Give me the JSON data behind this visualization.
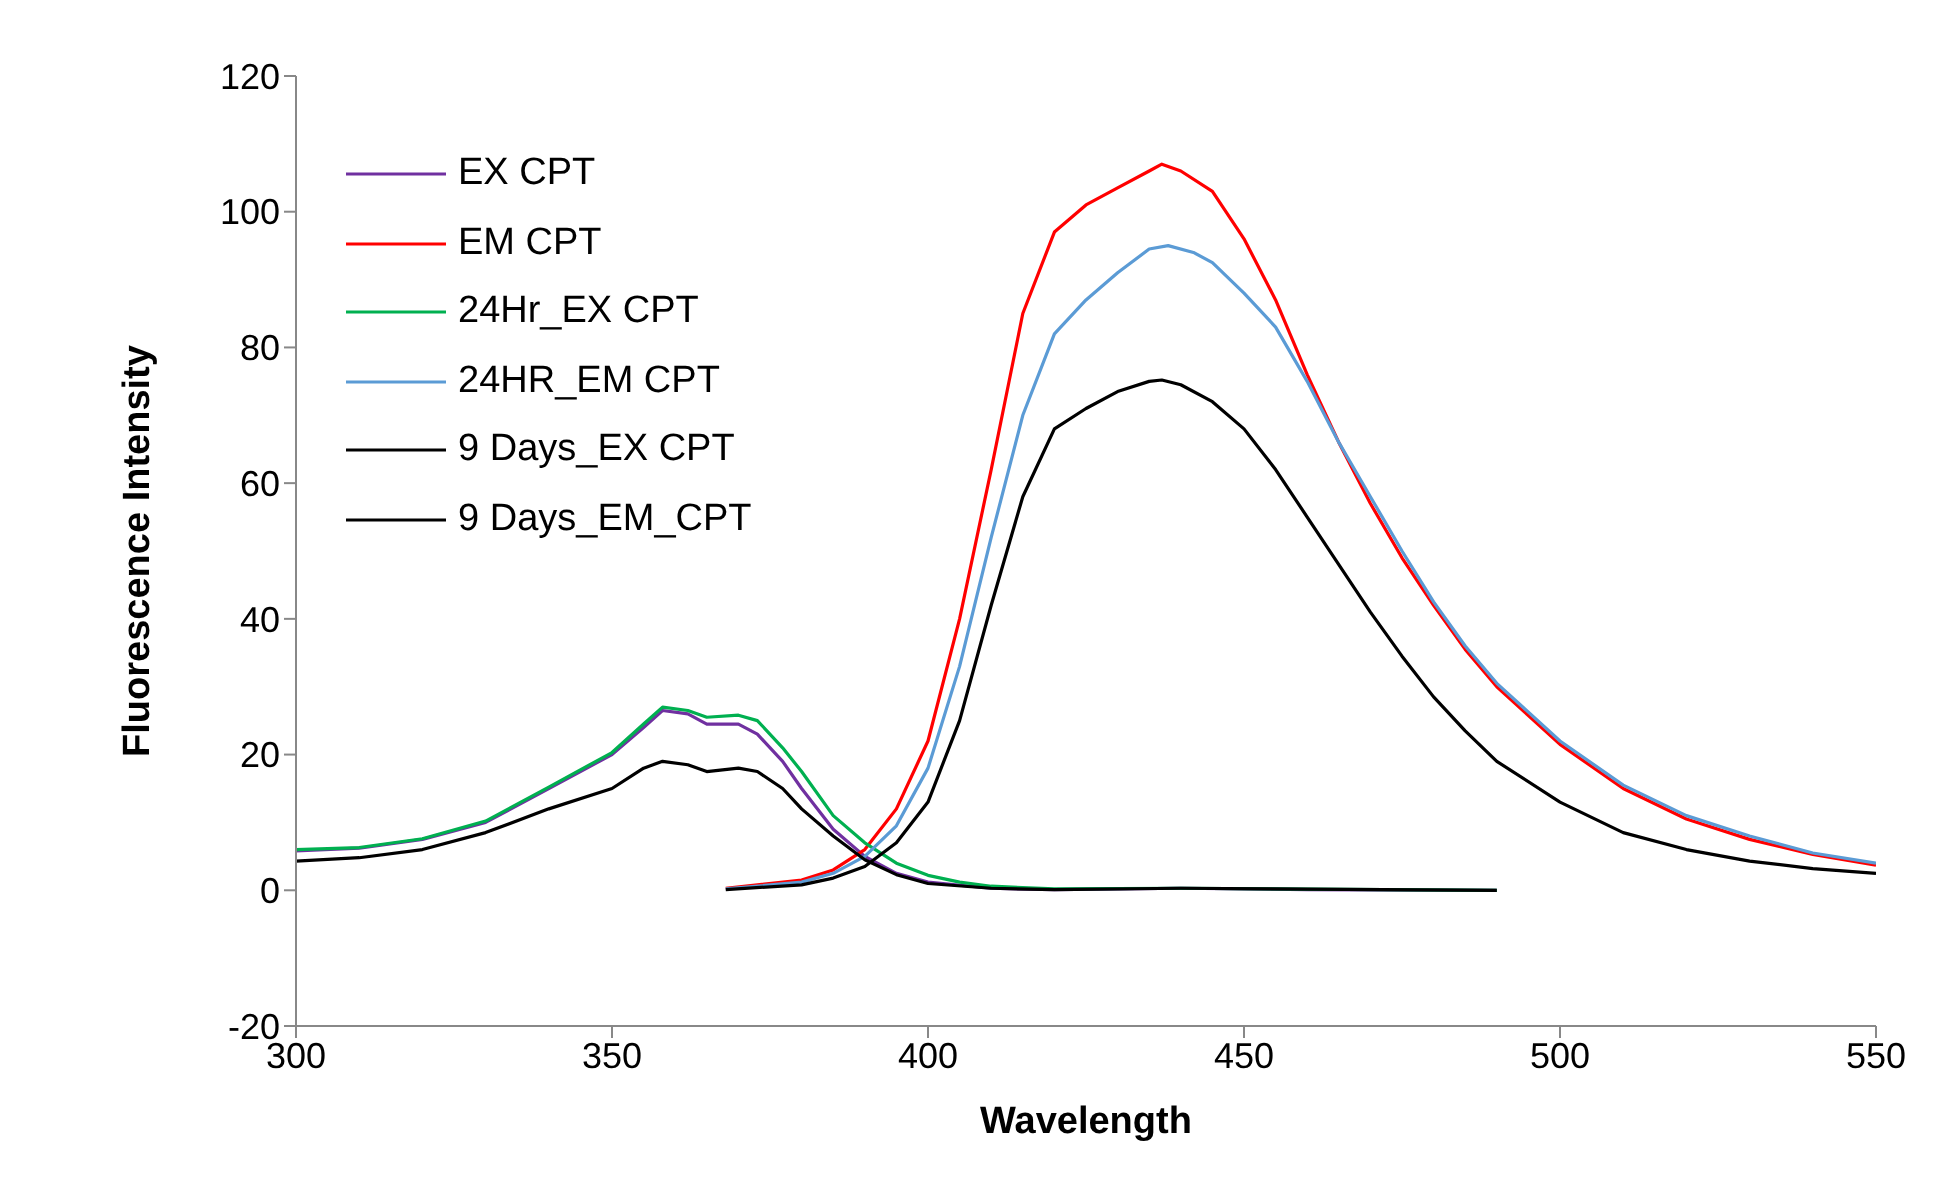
{
  "chart_data": {
    "type": "line",
    "xlabel": "Wavelength",
    "ylabel": "Fluorescence Intensity",
    "xlim": [
      300,
      550
    ],
    "xticks": [
      300,
      350,
      400,
      450,
      500,
      550
    ],
    "ylim": [
      -20,
      120
    ],
    "yticks": [
      -20,
      0,
      20,
      40,
      60,
      80,
      100,
      120
    ],
    "grid": false,
    "legend": "top left",
    "marker": "none",
    "line_style": "solid",
    "series": [
      {
        "name": "EX CPT",
        "color": "#7030a0",
        "x": [
          300,
          310,
          320,
          330,
          340,
          350,
          355,
          358,
          362,
          365,
          370,
          373,
          377,
          380,
          385,
          390,
          395,
          400,
          410,
          420,
          440,
          460,
          490
        ],
        "values": [
          5.8,
          6.2,
          7.5,
          10,
          15,
          20,
          24,
          26.5,
          26,
          24.5,
          24.5,
          23,
          19,
          15,
          9,
          5,
          2.5,
          1.2,
          0.3,
          0.1,
          0.3,
          0.1,
          0
        ]
      },
      {
        "name": "EM CPT",
        "color": "#ff0000",
        "x": [
          368,
          380,
          385,
          390,
          395,
          400,
          405,
          410,
          415,
          420,
          425,
          430,
          435,
          437,
          440,
          445,
          450,
          455,
          460,
          465,
          470,
          475,
          480,
          485,
          490,
          500,
          510,
          520,
          530,
          540,
          550
        ],
        "values": [
          0.3,
          1.5,
          3,
          6,
          12,
          22,
          40,
          62,
          85,
          97,
          101,
          103.5,
          106,
          107,
          106,
          103,
          96,
          87,
          76,
          66,
          57,
          49,
          42,
          35.5,
          30,
          21.5,
          15,
          10.5,
          7.5,
          5.3,
          3.7
        ]
      },
      {
        "name": "24Hr_EX CPT",
        "color": "#00b050",
        "x": [
          300,
          310,
          320,
          330,
          340,
          350,
          355,
          358,
          362,
          365,
          370,
          373,
          377,
          380,
          385,
          390,
          395,
          400,
          405,
          410,
          420,
          440,
          490
        ],
        "values": [
          6,
          6.3,
          7.6,
          10.2,
          15.2,
          20.3,
          24.5,
          27,
          26.5,
          25.5,
          25.8,
          25,
          21,
          17.5,
          11,
          7,
          4,
          2.2,
          1.2,
          0.6,
          0.2,
          0.3,
          0
        ]
      },
      {
        "name": "24HR_EM CPT",
        "color": "#5b9bd5",
        "x": [
          368,
          380,
          385,
          390,
          395,
          400,
          405,
          410,
          415,
          420,
          425,
          430,
          435,
          438,
          442,
          445,
          450,
          455,
          460,
          465,
          470,
          475,
          480,
          485,
          490,
          500,
          510,
          520,
          530,
          540,
          550
        ],
        "values": [
          0.2,
          1.2,
          2.5,
          5,
          9.5,
          18,
          33,
          52,
          70,
          82,
          87,
          91,
          94.5,
          95,
          94,
          92.5,
          88,
          83,
          75,
          66,
          58,
          50,
          42.5,
          36,
          30.5,
          22,
          15.5,
          11,
          8,
          5.5,
          4
        ]
      },
      {
        "name": "9 Days_EX CPT",
        "color": "#000000",
        "x": [
          300,
          310,
          320,
          330,
          340,
          350,
          355,
          358,
          362,
          365,
          370,
          373,
          377,
          380,
          385,
          390,
          395,
          400,
          410,
          420,
          440,
          490
        ],
        "values": [
          4.3,
          4.8,
          6,
          8.5,
          12,
          15,
          18,
          19,
          18.5,
          17.5,
          18,
          17.5,
          15,
          12,
          8,
          4.5,
          2.3,
          1,
          0.3,
          0.1,
          0.3,
          0
        ]
      },
      {
        "name": "9 Days_EM_CPT",
        "color": "#000000",
        "x": [
          368,
          380,
          385,
          390,
          395,
          400,
          405,
          410,
          415,
          420,
          425,
          430,
          435,
          437,
          440,
          445,
          450,
          455,
          460,
          465,
          470,
          475,
          480,
          485,
          490,
          500,
          510,
          520,
          530,
          540,
          550
        ],
        "values": [
          0.1,
          0.8,
          1.8,
          3.5,
          7,
          13,
          25,
          42,
          58,
          68,
          71,
          73.5,
          75,
          75.2,
          74.5,
          72,
          68,
          62,
          55,
          48,
          41,
          34.5,
          28.5,
          23.5,
          19,
          13,
          8.5,
          6,
          4.3,
          3.2,
          2.5
        ]
      }
    ]
  }
}
